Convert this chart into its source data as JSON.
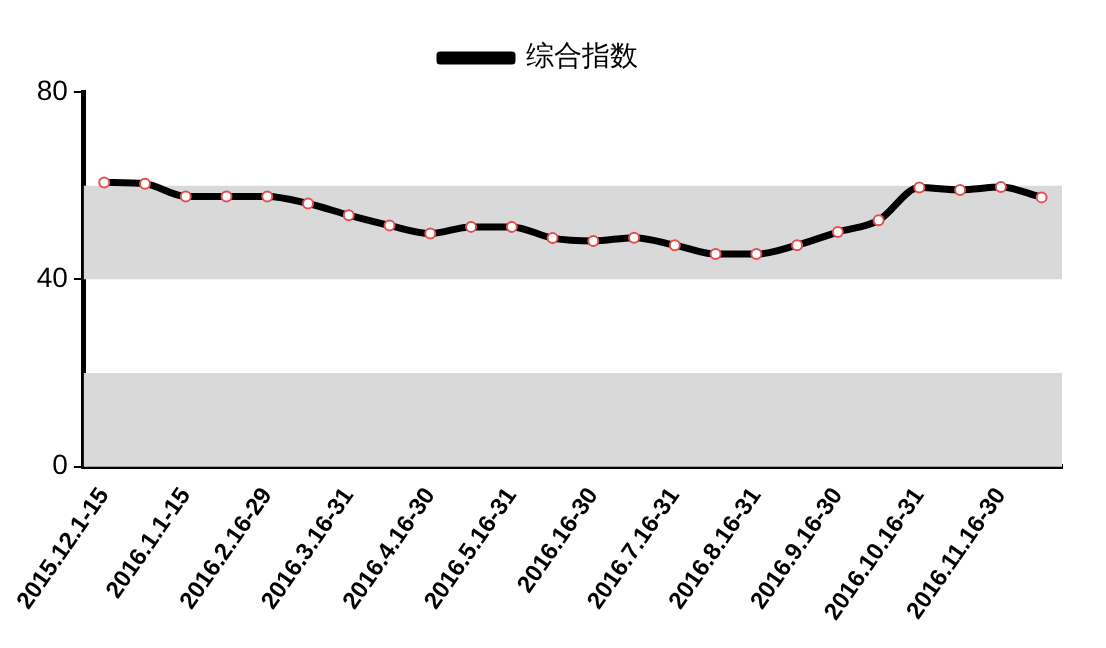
{
  "chart_data": {
    "type": "line",
    "categories": [
      "2015.12.1-15",
      null,
      "2016.1.1-15",
      null,
      "2016.2.16-29",
      null,
      "2016.3.16-31",
      null,
      "2016.4.16-30",
      null,
      "2016.5.16-31",
      null,
      "2016.16-30",
      null,
      "2016.7.16-31",
      null,
      "2016.8.16-31",
      null,
      "2016.9.16-30",
      null,
      "2016.10.16-31",
      null,
      "2016.11.16-30",
      null
    ],
    "series": [
      {
        "name": "综合指数",
        "color": "#000000",
        "values": [
          60.7,
          60.4,
          57.7,
          57.7,
          57.7,
          56.2,
          53.7,
          51.5,
          49.8,
          51.2,
          51.2,
          48.8,
          48.2,
          48.9,
          47.3,
          45.4,
          45.4,
          47.3,
          50.1,
          52.6,
          59.6,
          59.1,
          59.7,
          57.5
        ]
      }
    ],
    "ylim": [
      0,
      80
    ],
    "yticks": [
      0,
      40,
      80
    ],
    "bands": [
      {
        "axis": "y",
        "from": 40,
        "to": 60,
        "color": "#d9d9d9"
      },
      {
        "axis": "y",
        "from": 0,
        "to": 20,
        "color": "#d9d9d9"
      }
    ],
    "marker": "circle",
    "legend": "top",
    "grid": false
  }
}
